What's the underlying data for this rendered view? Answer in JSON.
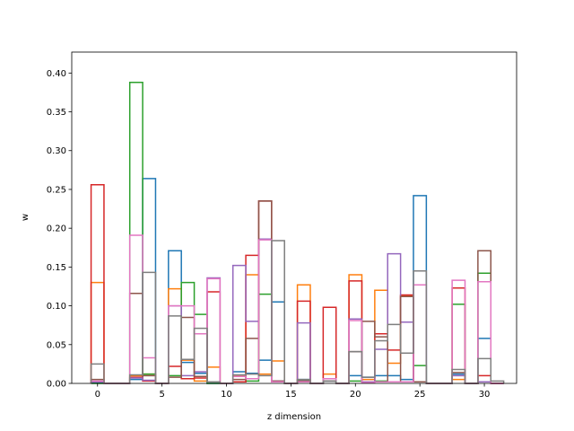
{
  "chart_data": {
    "type": "step-histogram",
    "xlabel": "z dimension",
    "ylabel": "w",
    "xlim": [
      -2.0,
      32.5
    ],
    "ylim": [
      0,
      0.427
    ],
    "xticks": [
      0,
      5,
      10,
      15,
      20,
      25,
      30
    ],
    "yticks": [
      0.0,
      0.05,
      0.1,
      0.15,
      0.2,
      0.25,
      0.3,
      0.35,
      0.4
    ],
    "bin_start": -0.5,
    "bin_width": 1,
    "colors": [
      "#1f77b4",
      "#ff7f0e",
      "#2ca02c",
      "#d62728",
      "#9467bd",
      "#8c564b",
      "#e377c2",
      "#7f7f7f"
    ],
    "series": [
      {
        "values": [
          0.001,
          0,
          0,
          0.005,
          0.264,
          0,
          0.171,
          0.027,
          0.013,
          0,
          0,
          0.015,
          0.013,
          0.03,
          0.105,
          0,
          0.005,
          0,
          0.003,
          0,
          0.01,
          0.008,
          0.01,
          0.01,
          0.005,
          0.242,
          0,
          0,
          0.012,
          0,
          0.058,
          0
        ]
      },
      {
        "values": [
          0.13,
          0,
          0,
          0.01,
          0.012,
          0,
          0.122,
          0.03,
          0.003,
          0.021,
          0,
          0.01,
          0.14,
          0.012,
          0.029,
          0,
          0.127,
          0,
          0.012,
          0,
          0.14,
          0.005,
          0.12,
          0.026,
          0.113,
          0.002,
          0,
          0,
          0.005,
          0,
          0.002,
          0
        ]
      },
      {
        "values": [
          0,
          0,
          0,
          0.388,
          0.012,
          0,
          0.01,
          0.13,
          0.089,
          0,
          0,
          0.002,
          0.003,
          0.115,
          0.003,
          0,
          0.003,
          0,
          0.003,
          0,
          0.003,
          0.002,
          0.003,
          0.002,
          0.002,
          0.023,
          0,
          0,
          0.102,
          0,
          0.142,
          0
        ]
      },
      {
        "values": [
          0.256,
          0,
          0,
          0.008,
          0.003,
          0,
          0.022,
          0.006,
          0.007,
          0.118,
          0,
          0.002,
          0.165,
          0.235,
          0.002,
          0,
          0.106,
          0,
          0.098,
          0,
          0.132,
          0.002,
          0.064,
          0.043,
          0.114,
          0.002,
          0,
          0,
          0.123,
          0,
          0.01,
          0
        ]
      },
      {
        "values": [
          0.002,
          0,
          0,
          0.007,
          0.004,
          0,
          0.1,
          0.01,
          0.015,
          0.136,
          0,
          0.152,
          0.08,
          0.186,
          0.003,
          0,
          0.078,
          0,
          0.003,
          0,
          0.083,
          0.002,
          0.044,
          0.167,
          0.079,
          0.002,
          0,
          0,
          0.01,
          0,
          0.002,
          0
        ]
      },
      {
        "values": [
          0.005,
          0,
          0,
          0.116,
          0.01,
          0,
          0.008,
          0.085,
          0.009,
          0.002,
          0,
          0.005,
          0.058,
          0.235,
          0.003,
          0,
          0.003,
          0,
          0.003,
          0,
          0.041,
          0.08,
          0.06,
          0.002,
          0.112,
          0.002,
          0,
          0,
          0.014,
          0,
          0.171,
          0
        ]
      },
      {
        "values": [
          0.003,
          0,
          0,
          0.191,
          0.033,
          0,
          0.1,
          0.1,
          0.064,
          0.135,
          0,
          0.009,
          0.006,
          0.185,
          0.002,
          0,
          0.002,
          0,
          0.006,
          0,
          0.081,
          0.001,
          0.002,
          0.002,
          0.002,
          0.127,
          0,
          0,
          0.133,
          0,
          0.131,
          0
        ]
      },
      {
        "values": [
          0.025,
          0,
          0,
          0.011,
          0.143,
          0,
          0.087,
          0.031,
          0.071,
          0.002,
          0,
          0.011,
          0.012,
          0.01,
          0.184,
          0,
          0.005,
          0,
          0.003,
          0,
          0.041,
          0.008,
          0.055,
          0.076,
          0.039,
          0.145,
          0,
          0,
          0.018,
          0,
          0.032,
          0.003
        ]
      }
    ]
  }
}
